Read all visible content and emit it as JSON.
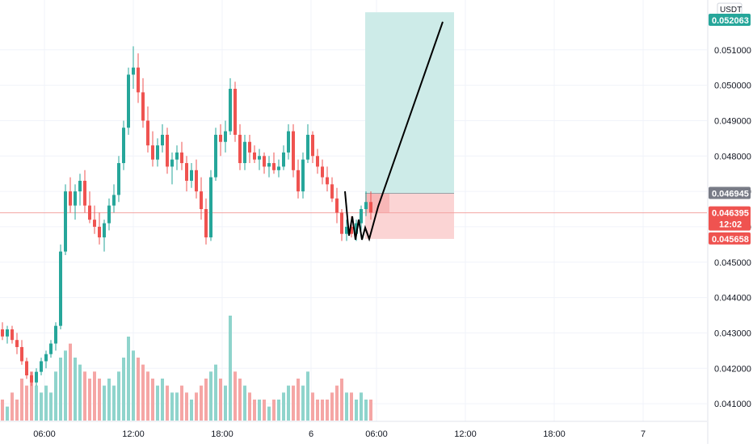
{
  "chart_data": {
    "type": "candlestick",
    "currency_label": "USDT",
    "y_axis": {
      "range": [
        0.0405,
        0.05225
      ],
      "ticks": [
        "0.041000",
        "0.042000",
        "0.043000",
        "0.044000",
        "0.045000",
        "0.046000",
        "0.047000",
        "0.048000",
        "0.049000",
        "0.050000",
        "0.051000"
      ]
    },
    "x_axis": {
      "tick_labels": [
        "06:00",
        "12:00",
        "18:00",
        "6",
        "06:00",
        "12:00",
        "18:00",
        "7"
      ]
    },
    "price_badges": {
      "target": "0.052063",
      "entry": "0.046945",
      "last": "0.046395",
      "countdown": "12:02",
      "stop": "0.045658"
    },
    "colors": {
      "up": "#26a69a",
      "down": "#ef5350",
      "up_volume": "#8fd4cc",
      "down_volume": "#f5a6a5",
      "profit_zone": "#cdebe8",
      "loss_zone": "#fbd4d4",
      "loss_zone_strong": "#f8b7b7",
      "grid": "#f0f3fa",
      "last_line": "#f3a4a3"
    },
    "position": {
      "entry": 0.046945,
      "target": 0.052063,
      "stop": 0.045658
    },
    "candles": [
      [
        0.0431,
        0.0433,
        0.0428,
        0.0429,
        3
      ],
      [
        0.0429,
        0.0432,
        0.0427,
        0.0431,
        2
      ],
      [
        0.0431,
        0.0432,
        0.0427,
        0.0428,
        4
      ],
      [
        0.0428,
        0.043,
        0.0424,
        0.0426,
        3
      ],
      [
        0.0426,
        0.0428,
        0.0421,
        0.0422,
        6
      ],
      [
        0.0422,
        0.0423,
        0.0417,
        0.0418,
        5
      ],
      [
        0.0418,
        0.0419,
        0.0415,
        0.0416,
        7
      ],
      [
        0.0416,
        0.042,
        0.0415,
        0.0419,
        5
      ],
      [
        0.0419,
        0.0423,
        0.0418,
        0.0422,
        4
      ],
      [
        0.0422,
        0.0425,
        0.042,
        0.0424,
        5
      ],
      [
        0.0424,
        0.0428,
        0.0423,
        0.0427,
        4
      ],
      [
        0.0427,
        0.0433,
        0.0425,
        0.0432,
        7
      ],
      [
        0.0432,
        0.0455,
        0.0431,
        0.0453,
        9
      ],
      [
        0.0453,
        0.0472,
        0.0452,
        0.047,
        10
      ],
      [
        0.047,
        0.0474,
        0.0464,
        0.0466,
        11
      ],
      [
        0.0466,
        0.0472,
        0.0462,
        0.047,
        9
      ],
      [
        0.047,
        0.0475,
        0.0466,
        0.0473,
        8
      ],
      [
        0.0473,
        0.0476,
        0.0464,
        0.0466,
        7
      ],
      [
        0.0466,
        0.047,
        0.0461,
        0.0462,
        6
      ],
      [
        0.0462,
        0.0466,
        0.0458,
        0.046,
        7
      ],
      [
        0.046,
        0.0464,
        0.0455,
        0.0457,
        6
      ],
      [
        0.0457,
        0.0462,
        0.0453,
        0.0461,
        5
      ],
      [
        0.0461,
        0.0468,
        0.0459,
        0.0466,
        6
      ],
      [
        0.0466,
        0.0472,
        0.0464,
        0.0469,
        5
      ],
      [
        0.0469,
        0.048,
        0.0467,
        0.0478,
        7
      ],
      [
        0.0478,
        0.049,
        0.0476,
        0.0488,
        9
      ],
      [
        0.0488,
        0.0505,
        0.0486,
        0.0503,
        12
      ],
      [
        0.0503,
        0.0511,
        0.0499,
        0.0505,
        10
      ],
      [
        0.0505,
        0.0509,
        0.0495,
        0.0498,
        9
      ],
      [
        0.0498,
        0.0502,
        0.0488,
        0.049,
        8
      ],
      [
        0.049,
        0.0494,
        0.0481,
        0.0483,
        7
      ],
      [
        0.0483,
        0.0487,
        0.0477,
        0.0479,
        6
      ],
      [
        0.0479,
        0.0485,
        0.0477,
        0.0483,
        5
      ],
      [
        0.0483,
        0.0489,
        0.0481,
        0.0486,
        6
      ],
      [
        0.0486,
        0.0488,
        0.0475,
        0.0477,
        5
      ],
      [
        0.0477,
        0.0481,
        0.0472,
        0.0479,
        4
      ],
      [
        0.0479,
        0.0483,
        0.0476,
        0.0481,
        4
      ],
      [
        0.0481,
        0.0484,
        0.0476,
        0.0478,
        5
      ],
      [
        0.0478,
        0.048,
        0.047,
        0.0473,
        4
      ],
      [
        0.0473,
        0.0478,
        0.0471,
        0.0476,
        3
      ],
      [
        0.0476,
        0.0479,
        0.0468,
        0.047,
        4
      ],
      [
        0.047,
        0.0474,
        0.0462,
        0.0465,
        5
      ],
      [
        0.0465,
        0.0468,
        0.0455,
        0.0457,
        6
      ],
      [
        0.0457,
        0.0476,
        0.0456,
        0.0474,
        7
      ],
      [
        0.0474,
        0.0488,
        0.0473,
        0.0486,
        8
      ],
      [
        0.0486,
        0.0489,
        0.048,
        0.0484,
        6
      ],
      [
        0.0484,
        0.049,
        0.0481,
        0.0487,
        5
      ],
      [
        0.0487,
        0.0502,
        0.0486,
        0.0499,
        15
      ],
      [
        0.0499,
        0.0501,
        0.0484,
        0.0486,
        7
      ],
      [
        0.0486,
        0.0489,
        0.0476,
        0.0478,
        6
      ],
      [
        0.0478,
        0.0486,
        0.0476,
        0.0484,
        5
      ],
      [
        0.0484,
        0.0486,
        0.0478,
        0.0481,
        4
      ],
      [
        0.0481,
        0.0483,
        0.0478,
        0.0479,
        3
      ],
      [
        0.0479,
        0.0482,
        0.0476,
        0.048,
        3
      ],
      [
        0.048,
        0.0481,
        0.0475,
        0.0477,
        3
      ],
      [
        0.0477,
        0.048,
        0.0474,
        0.0478,
        2
      ],
      [
        0.0478,
        0.0481,
        0.0475,
        0.0476,
        3
      ],
      [
        0.0476,
        0.0479,
        0.0474,
        0.0477,
        3
      ],
      [
        0.0477,
        0.0483,
        0.0476,
        0.0481,
        4
      ],
      [
        0.0481,
        0.0489,
        0.0479,
        0.0487,
        5
      ],
      [
        0.0487,
        0.0489,
        0.0474,
        0.0476,
        5
      ],
      [
        0.0476,
        0.0479,
        0.0468,
        0.047,
        6
      ],
      [
        0.047,
        0.0481,
        0.0468,
        0.0479,
        5
      ],
      [
        0.0479,
        0.0489,
        0.0478,
        0.0486,
        7
      ],
      [
        0.0486,
        0.0487,
        0.0478,
        0.048,
        4
      ],
      [
        0.048,
        0.0482,
        0.0475,
        0.0477,
        3
      ],
      [
        0.0477,
        0.0479,
        0.0472,
        0.0474,
        3
      ],
      [
        0.0474,
        0.0477,
        0.047,
        0.0472,
        3
      ],
      [
        0.0472,
        0.0474,
        0.0467,
        0.0468,
        4
      ],
      [
        0.0468,
        0.0471,
        0.0461,
        0.0464,
        5
      ],
      [
        0.0464,
        0.0465,
        0.0456,
        0.0458,
        6
      ],
      [
        0.0458,
        0.0462,
        0.0456,
        0.046,
        4
      ],
      [
        0.046,
        0.0463,
        0.0457,
        0.0458,
        4
      ],
      [
        0.0458,
        0.0462,
        0.0456,
        0.0461,
        3
      ],
      [
        0.0461,
        0.0466,
        0.0459,
        0.0465,
        4
      ],
      [
        0.0465,
        0.047,
        0.0463,
        0.0467,
        3
      ],
      [
        0.0467,
        0.047,
        0.0462,
        0.0464,
        3
      ]
    ]
  }
}
